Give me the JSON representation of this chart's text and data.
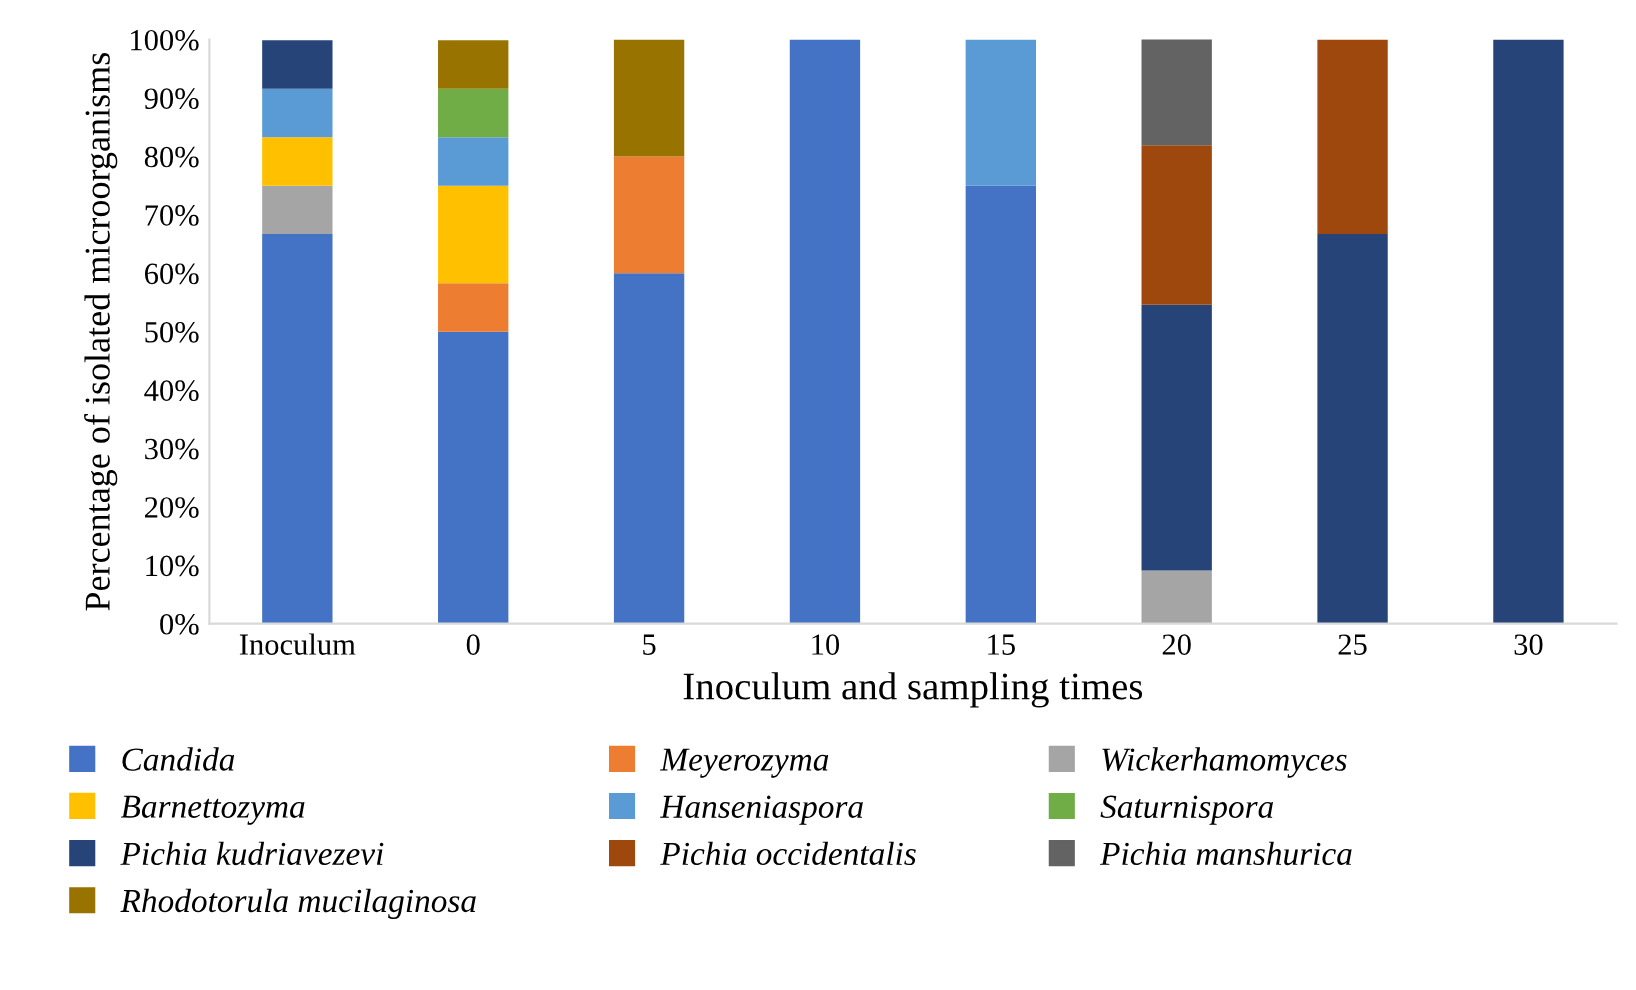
{
  "chart_data": {
    "type": "bar",
    "stacked": true,
    "xlabel": "Inoculum and sampling times",
    "ylabel": "Percentage of isolated microorganisms",
    "categories": [
      "Inoculum",
      "0",
      "5",
      "10",
      "15",
      "20",
      "25",
      "30"
    ],
    "ylim": [
      0,
      100
    ],
    "yticks": [
      {
        "value": 0,
        "label": "0%"
      },
      {
        "value": 10,
        "label": "10%"
      },
      {
        "value": 20,
        "label": "20%"
      },
      {
        "value": 30,
        "label": "30%"
      },
      {
        "value": 40,
        "label": "40%"
      },
      {
        "value": 50,
        "label": "50%"
      },
      {
        "value": 60,
        "label": "60%"
      },
      {
        "value": 70,
        "label": "70%"
      },
      {
        "value": 80,
        "label": "80%"
      },
      {
        "value": 90,
        "label": "90%"
      },
      {
        "value": 100,
        "label": "100%"
      }
    ],
    "legend": "bottom",
    "grid": false,
    "series": [
      {
        "name": "Candida",
        "color": "#4472c4",
        "values": [
          66.7,
          50,
          60,
          100,
          75,
          0,
          0,
          0
        ]
      },
      {
        "name": "Meyerozyma",
        "color": "#ed7d31",
        "values": [
          0,
          8.3,
          20,
          0,
          0,
          0,
          0,
          0
        ]
      },
      {
        "name": "Wickerhamomyces",
        "color": "#a5a5a5",
        "values": [
          8.3,
          0,
          0,
          0,
          0,
          9.1,
          0,
          0
        ]
      },
      {
        "name": "Barnettozyma",
        "color": "#ffc000",
        "values": [
          8.3,
          16.7,
          0,
          0,
          0,
          0,
          0,
          0
        ]
      },
      {
        "name": "Hanseniaspora",
        "color": "#5b9bd5",
        "values": [
          8.3,
          8.3,
          0,
          0,
          25,
          0,
          0,
          0
        ]
      },
      {
        "name": "Saturnispora",
        "color": "#70ad47",
        "values": [
          0,
          8.3,
          0,
          0,
          0,
          0,
          0,
          0
        ]
      },
      {
        "name": "Pichia kudriavezevi",
        "color": "#264478",
        "values": [
          8.3,
          0,
          0,
          0,
          0,
          45.5,
          66.7,
          100
        ]
      },
      {
        "name": "Pichia occidentalis",
        "color": "#9e480e",
        "values": [
          0,
          0,
          0,
          0,
          0,
          27.3,
          33.3,
          0
        ]
      },
      {
        "name": "Pichia manshurica",
        "color": "#636363",
        "values": [
          0,
          0,
          0,
          0,
          0,
          18.2,
          0,
          0
        ]
      },
      {
        "name": "Rhodotorula mucilaginosa",
        "color": "#997300",
        "values": [
          0,
          8.3,
          20,
          0,
          0,
          0,
          0,
          0
        ]
      }
    ]
  }
}
